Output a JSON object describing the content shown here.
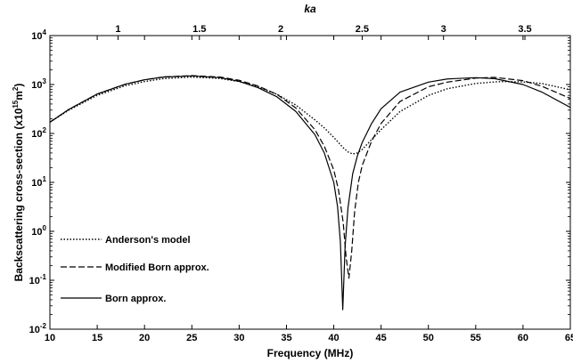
{
  "chart_data": {
    "type": "line",
    "xlabel": "Frequency (MHz)",
    "ylabel_prefix": "Backscattering cross-section (x10",
    "ylabel_exp1": "15",
    "ylabel_mid": "m",
    "ylabel_exp2": "2",
    "ylabel_suffix": ")",
    "top_xlabel": "ka",
    "xlim": [
      10,
      65
    ],
    "ylim": [
      0.01,
      10000
    ],
    "yscale": "log",
    "x_ticks": [
      "10",
      "15",
      "20",
      "25",
      "30",
      "35",
      "40",
      "45",
      "50",
      "55",
      "60",
      "65"
    ],
    "x_tick_values": [
      10,
      15,
      20,
      25,
      30,
      35,
      40,
      45,
      50,
      55,
      60,
      65
    ],
    "y_tick_exponents": [
      "-2",
      "-1",
      "0",
      "1",
      "2",
      "3",
      "4"
    ],
    "y_tick_base": "10",
    "top_ticks": [
      "1",
      "1.5",
      "2",
      "2.5",
      "3",
      "3.5"
    ],
    "top_tick_freqs": [
      17.2,
      25.8,
      34.4,
      43.0,
      51.6,
      60.2
    ],
    "legend_position": "left-bottom",
    "series": [
      {
        "name": "Anderson's model",
        "style": "dotted",
        "x": [
          10,
          12,
          15,
          18,
          20,
          22,
          25,
          28,
          30,
          32,
          34,
          36,
          38,
          39,
          40,
          41,
          41.5,
          42,
          42.5,
          43,
          44,
          45,
          47,
          50,
          52,
          55,
          57,
          58,
          60,
          62,
          65
        ],
        "y": [
          170,
          300,
          600,
          950,
          1150,
          1320,
          1420,
          1330,
          1150,
          900,
          630,
          380,
          190,
          130,
          83,
          51,
          42,
          38,
          40,
          47,
          75,
          120,
          280,
          600,
          820,
          1050,
          1130,
          1150,
          1130,
          1050,
          780
        ]
      },
      {
        "name": "Modified Born approx.",
        "style": "dashed",
        "x": [
          10,
          12,
          15,
          18,
          20,
          22,
          25,
          28,
          30,
          32,
          34,
          36,
          38,
          39,
          40,
          40.5,
          41,
          41.3,
          41.6,
          41.9,
          42.2,
          42.6,
          43,
          44,
          45,
          47,
          50,
          52,
          55,
          57,
          60,
          62,
          65
        ],
        "y": [
          170,
          310,
          640,
          1020,
          1250,
          1430,
          1520,
          1420,
          1220,
          930,
          630,
          330,
          120,
          55,
          18,
          7,
          1.5,
          0.3,
          0.11,
          0.4,
          2.5,
          10,
          22,
          70,
          160,
          450,
          900,
          1120,
          1350,
          1400,
          1200,
          920,
          520
        ]
      },
      {
        "name": "Born approx.",
        "style": "solid",
        "x": [
          10,
          12,
          15,
          18,
          20,
          22,
          25,
          28,
          30,
          32,
          34,
          36,
          38,
          39,
          40,
          40.4,
          40.7,
          40.95,
          41.2,
          41.5,
          42,
          42.5,
          43,
          44,
          45,
          47,
          50,
          52,
          55,
          57,
          60,
          62,
          65
        ],
        "y": [
          170,
          310,
          640,
          1020,
          1250,
          1420,
          1500,
          1380,
          1160,
          860,
          560,
          280,
          95,
          40,
          10,
          3.2,
          0.6,
          0.025,
          0.5,
          3,
          15,
          35,
          65,
          160,
          320,
          700,
          1120,
          1300,
          1380,
          1320,
          1000,
          700,
          340
        ]
      }
    ]
  }
}
